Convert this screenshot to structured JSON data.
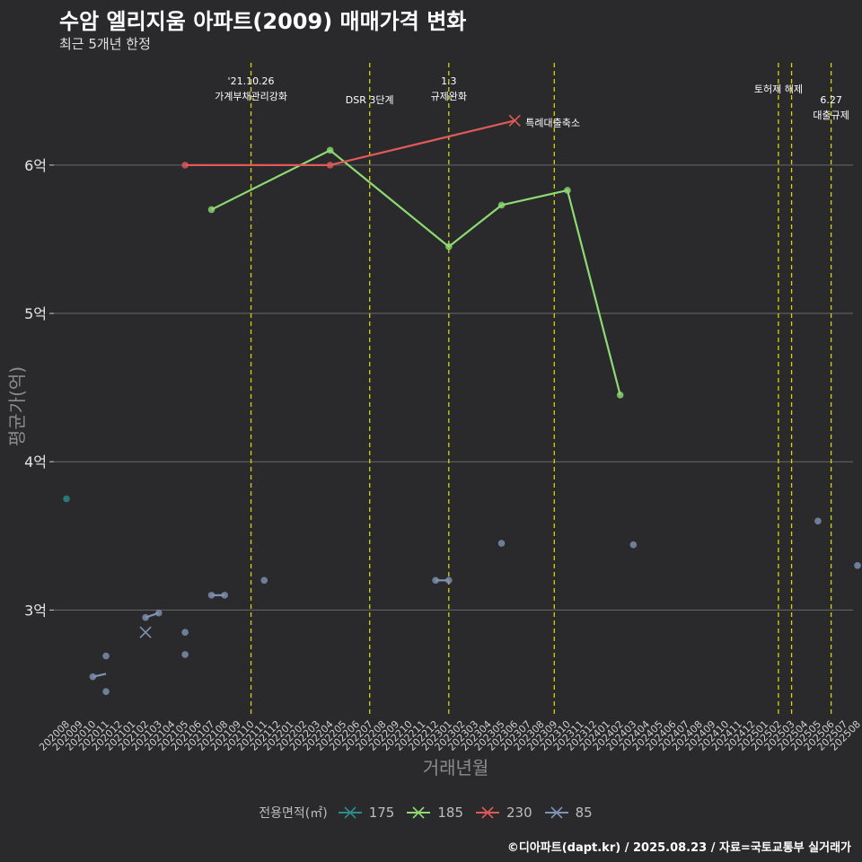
{
  "title": "수암 엘리지움 아파트(2009) 매매가격 변화",
  "subtitle": "최근 5개년 한정",
  "caption": "©디아파트(dapt.kr) / 2025.08.23 / 자료=국토교통부 실거래가",
  "chart_data": {
    "type": "line",
    "xlabel": "거래년월",
    "ylabel": "평균가(억)",
    "categories": [
      "202008",
      "202009",
      "202010",
      "202011",
      "202012",
      "202101",
      "202102",
      "202103",
      "202104",
      "202105",
      "202106",
      "202107",
      "202108",
      "202109",
      "202110",
      "202111",
      "202112",
      "202201",
      "202202",
      "202203",
      "202204",
      "202205",
      "202206",
      "202207",
      "202208",
      "202209",
      "202210",
      "202211",
      "202212",
      "202301",
      "202302",
      "202303",
      "202304",
      "202305",
      "202306",
      "202307",
      "202308",
      "202309",
      "202310",
      "202311",
      "202312",
      "202401",
      "202402",
      "202403",
      "202404",
      "202405",
      "202406",
      "202407",
      "202408",
      "202409",
      "202410",
      "202411",
      "202412",
      "202501",
      "202502",
      "202503",
      "202504",
      "202505",
      "202506",
      "202507",
      "202508"
    ],
    "yticks": [
      3,
      4,
      5,
      6
    ],
    "ytick_labels": [
      "3억",
      "4억",
      "5억",
      "6억"
    ],
    "ylim": [
      2.3,
      6.75
    ],
    "legend_title": "전용면적(㎡)",
    "series": [
      {
        "name": "175",
        "color": "#2a8c8c",
        "points": [
          [
            "202008",
            3.75
          ]
        ],
        "lines": [],
        "cross": []
      },
      {
        "name": "185",
        "color": "#8edb73",
        "points": [
          [
            "202107",
            5.7
          ],
          [
            "202204",
            6.1
          ],
          [
            "202301",
            5.45
          ],
          [
            "202305",
            5.73
          ],
          [
            "202310",
            5.83
          ],
          [
            "202402",
            4.45
          ]
        ],
        "lines": [
          [
            [
              "202107",
              5.7
            ],
            [
              "202204",
              6.1
            ],
            [
              "202301",
              5.45
            ],
            [
              "202305",
              5.73
            ],
            [
              "202310",
              5.83
            ],
            [
              "202402",
              4.45
            ]
          ]
        ],
        "cross": []
      },
      {
        "name": "230",
        "color": "#e05a5a",
        "points": [
          [
            "202105",
            6.0
          ],
          [
            "202204",
            6.0
          ]
        ],
        "lines": [
          [
            [
              "202105",
              6.0
            ],
            [
              "202204",
              6.0
            ],
            [
              "202306",
              6.3
            ]
          ]
        ],
        "cross": [
          [
            "202306",
            6.3
          ]
        ]
      },
      {
        "name": "85",
        "color": "#7f93b4",
        "points": [
          [
            "202010",
            2.55
          ],
          [
            "202011",
            2.69
          ],
          [
            "202011",
            2.45
          ],
          [
            "202103",
            2.98
          ],
          [
            "202102",
            2.95
          ],
          [
            "202105",
            2.85
          ],
          [
            "202105",
            2.7
          ],
          [
            "202107",
            3.1
          ],
          [
            "202108",
            3.1
          ],
          [
            "202111",
            3.2
          ],
          [
            "202212",
            3.2
          ],
          [
            "202301",
            3.2
          ],
          [
            "202305",
            3.45
          ],
          [
            "202403",
            3.44
          ],
          [
            "202505",
            3.6
          ],
          [
            "202508",
            3.3
          ]
        ],
        "lines": [
          [
            [
              "202010",
              2.55
            ],
            [
              "202011",
              2.57
            ]
          ],
          [
            [
              "202102",
              2.95
            ],
            [
              "202103",
              2.98
            ]
          ],
          [
            [
              "202107",
              3.1
            ],
            [
              "202108",
              3.1
            ]
          ],
          [
            [
              "202212",
              3.2
            ],
            [
              "202301",
              3.2
            ]
          ]
        ],
        "cross": [
          [
            "202102",
            2.85
          ]
        ]
      }
    ],
    "events": [
      {
        "month": "202110",
        "label": [
          "'21.10.26",
          "가계부채관리강화"
        ],
        "row": 0
      },
      {
        "month": "202207",
        "label": [
          "DSR 3단계"
        ],
        "row": 1
      },
      {
        "month": "202301",
        "label": [
          "1.3",
          "규제완화"
        ],
        "row": 0
      },
      {
        "month": "202309",
        "label": [],
        "row": 0
      },
      {
        "month": "202502",
        "label": [
          "토허제 해제"
        ],
        "row": 0
      },
      {
        "month": "202503",
        "label": [],
        "row": 0
      },
      {
        "month": "202506",
        "label": [
          "6.27",
          "대출규제"
        ],
        "row": 1
      }
    ],
    "annotations": [
      {
        "month": "202306",
        "value": 6.3,
        "text": "특례대출축소"
      }
    ]
  }
}
